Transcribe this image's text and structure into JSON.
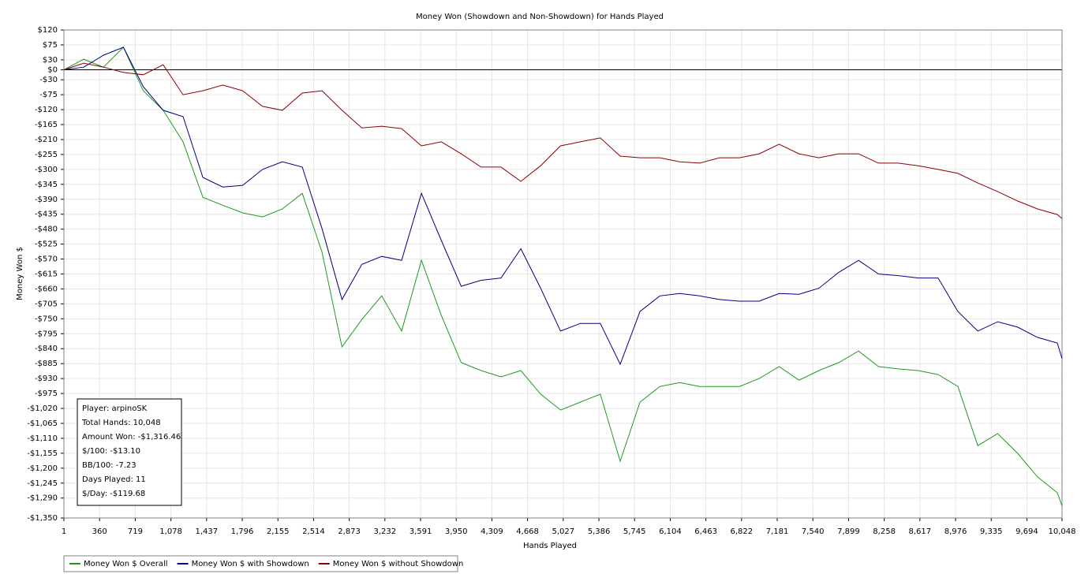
{
  "chart_data": {
    "type": "line",
    "title": "Money Won (Showdown and Non-Showdown) for Hands Played",
    "x_label": "Hands Played",
    "y_label": "Money Won $",
    "grid": true,
    "legend": "bottom-left",
    "xlim": [
      1,
      10048
    ],
    "ylim": [
      -1350,
      120
    ],
    "xticks": [
      1,
      360,
      719,
      {
        "value": 1078,
        "label": "1,078"
      },
      {
        "value": 1437,
        "label": "1,437"
      },
      {
        "value": 1796,
        "label": "1,796"
      },
      {
        "value": 2155,
        "label": "2,155"
      },
      {
        "value": 2514,
        "label": "2,514"
      },
      {
        "value": 2873,
        "label": "2,873"
      },
      {
        "value": 3232,
        "label": "3,232"
      },
      {
        "value": 3591,
        "label": "3,591"
      },
      {
        "value": 3950,
        "label": "3,950"
      },
      {
        "value": 4309,
        "label": "4,309"
      },
      {
        "value": 4668,
        "label": "4,668"
      },
      {
        "value": 5027,
        "label": "5,027"
      },
      {
        "value": 5386,
        "label": "5,386"
      },
      {
        "value": 5745,
        "label": "5,745"
      },
      {
        "value": 6104,
        "label": "6,104"
      },
      {
        "value": 6463,
        "label": "6,463"
      },
      {
        "value": 6822,
        "label": "6,822"
      },
      {
        "value": 7181,
        "label": "7,181"
      },
      {
        "value": 7540,
        "label": "7,540"
      },
      {
        "value": 7899,
        "label": "7,899"
      },
      {
        "value": 8258,
        "label": "8,258"
      },
      {
        "value": 8617,
        "label": "8,617"
      },
      {
        "value": 8976,
        "label": "8,976"
      },
      {
        "value": 9335,
        "label": "9,335"
      },
      {
        "value": 9694,
        "label": "9,694"
      },
      {
        "value": 10048,
        "label": "10,048"
      }
    ],
    "yticks": [
      {
        "value": 120,
        "label": "$120"
      },
      {
        "value": 75,
        "label": "$75"
      },
      {
        "value": 30,
        "label": "$30"
      },
      {
        "value": 0,
        "label": "$0"
      },
      {
        "value": -30,
        "label": "-$30"
      },
      {
        "value": -75,
        "label": "-$75"
      },
      {
        "value": -120,
        "label": "-$120"
      },
      {
        "value": -165,
        "label": "-$165"
      },
      {
        "value": -210,
        "label": "-$210"
      },
      {
        "value": -255,
        "label": "-$255"
      },
      {
        "value": -300,
        "label": "-$300"
      },
      {
        "value": -345,
        "label": "-$345"
      },
      {
        "value": -390,
        "label": "-$390"
      },
      {
        "value": -435,
        "label": "-$435"
      },
      {
        "value": -480,
        "label": "-$480"
      },
      {
        "value": -525,
        "label": "-$525"
      },
      {
        "value": -570,
        "label": "-$570"
      },
      {
        "value": -615,
        "label": "-$615"
      },
      {
        "value": -660,
        "label": "-$660"
      },
      {
        "value": -705,
        "label": "-$705"
      },
      {
        "value": -750,
        "label": "-$750"
      },
      {
        "value": -795,
        "label": "-$795"
      },
      {
        "value": -840,
        "label": "-$840"
      },
      {
        "value": -885,
        "label": "-$885"
      },
      {
        "value": -930,
        "label": "-$930"
      },
      {
        "value": -975,
        "label": "-$975"
      },
      {
        "value": -1020,
        "label": "-$1,020"
      },
      {
        "value": -1065,
        "label": "-$1,065"
      },
      {
        "value": -1110,
        "label": "-$1,110"
      },
      {
        "value": -1155,
        "label": "-$1,155"
      },
      {
        "value": -1200,
        "label": "-$1,200"
      },
      {
        "value": -1245,
        "label": "-$1,245"
      },
      {
        "value": -1290,
        "label": "-$1,290"
      },
      {
        "value": -1350,
        "label": "-$1,350"
      }
    ],
    "x": [
      1,
      200,
      400,
      600,
      800,
      1000,
      1200,
      1400,
      1600,
      1800,
      2000,
      2200,
      2400,
      2600,
      2800,
      3000,
      3200,
      3400,
      3600,
      3800,
      4000,
      4200,
      4400,
      4600,
      4800,
      5000,
      5200,
      5400,
      5600,
      5800,
      6000,
      6200,
      6400,
      6600,
      6800,
      7000,
      7200,
      7400,
      7600,
      7800,
      8000,
      8200,
      8400,
      8600,
      8800,
      9000,
      9200,
      9400,
      9600,
      9800,
      10000,
      10048
    ],
    "series": [
      {
        "name": "Money Won $ Overall",
        "color": "#1e9a1e",
        "values": [
          0,
          32,
          8,
          68,
          -63,
          -122,
          -217,
          -384,
          -408,
          -431,
          -443,
          -419,
          -372,
          -550,
          -835,
          -752,
          -681,
          -787,
          -574,
          -740,
          -882,
          -906,
          -925,
          -906,
          -977,
          -1025,
          -1001,
          -977,
          -1179,
          -1001,
          -954,
          -942,
          -954,
          -954,
          -954,
          -930,
          -894,
          -935,
          -906,
          -882,
          -847,
          -894,
          -901,
          -906,
          -918,
          -954,
          -1132,
          -1096,
          -1155,
          -1226,
          -1274,
          -1314
        ]
      },
      {
        "name": "Money Won $ with Showdown",
        "color": "#00007f",
        "values": [
          0,
          8,
          44,
          68,
          -51,
          -122,
          -141,
          -324,
          -353,
          -348,
          -300,
          -277,
          -293,
          -479,
          -692,
          -586,
          -562,
          -574,
          -372,
          -514,
          -652,
          -634,
          -627,
          -539,
          -658,
          -787,
          -764,
          -764,
          -887,
          -728,
          -681,
          -674,
          -681,
          -692,
          -697,
          -697,
          -674,
          -676,
          -658,
          -610,
          -574,
          -615,
          -620,
          -627,
          -627,
          -728,
          -787,
          -759,
          -775,
          -806,
          -823,
          -870
        ]
      },
      {
        "name": "Money Won $ without Showdown",
        "color": "#8b0000",
        "values": [
          0,
          20,
          8,
          -8,
          -15,
          15,
          -75,
          -63,
          -46,
          -63,
          -110,
          -122,
          -70,
          -63,
          -122,
          -175,
          -170,
          -177,
          -229,
          -217,
          -253,
          -293,
          -293,
          -336,
          -289,
          -229,
          -217,
          -205,
          -260,
          -265,
          -265,
          -277,
          -281,
          -265,
          -265,
          -253,
          -224,
          -253,
          -265,
          -253,
          -253,
          -281,
          -281,
          -289,
          -300,
          -312,
          -341,
          -367,
          -395,
          -419,
          -436,
          -448
        ]
      }
    ],
    "info": [
      "Player: arpinoSK",
      "Total Hands: 10,048",
      "Amount Won: -$1,316.46",
      "$/100: -$13.10",
      "BB/100: -7.23",
      "Days Played: 11",
      "$/Day: -$119.68"
    ]
  }
}
